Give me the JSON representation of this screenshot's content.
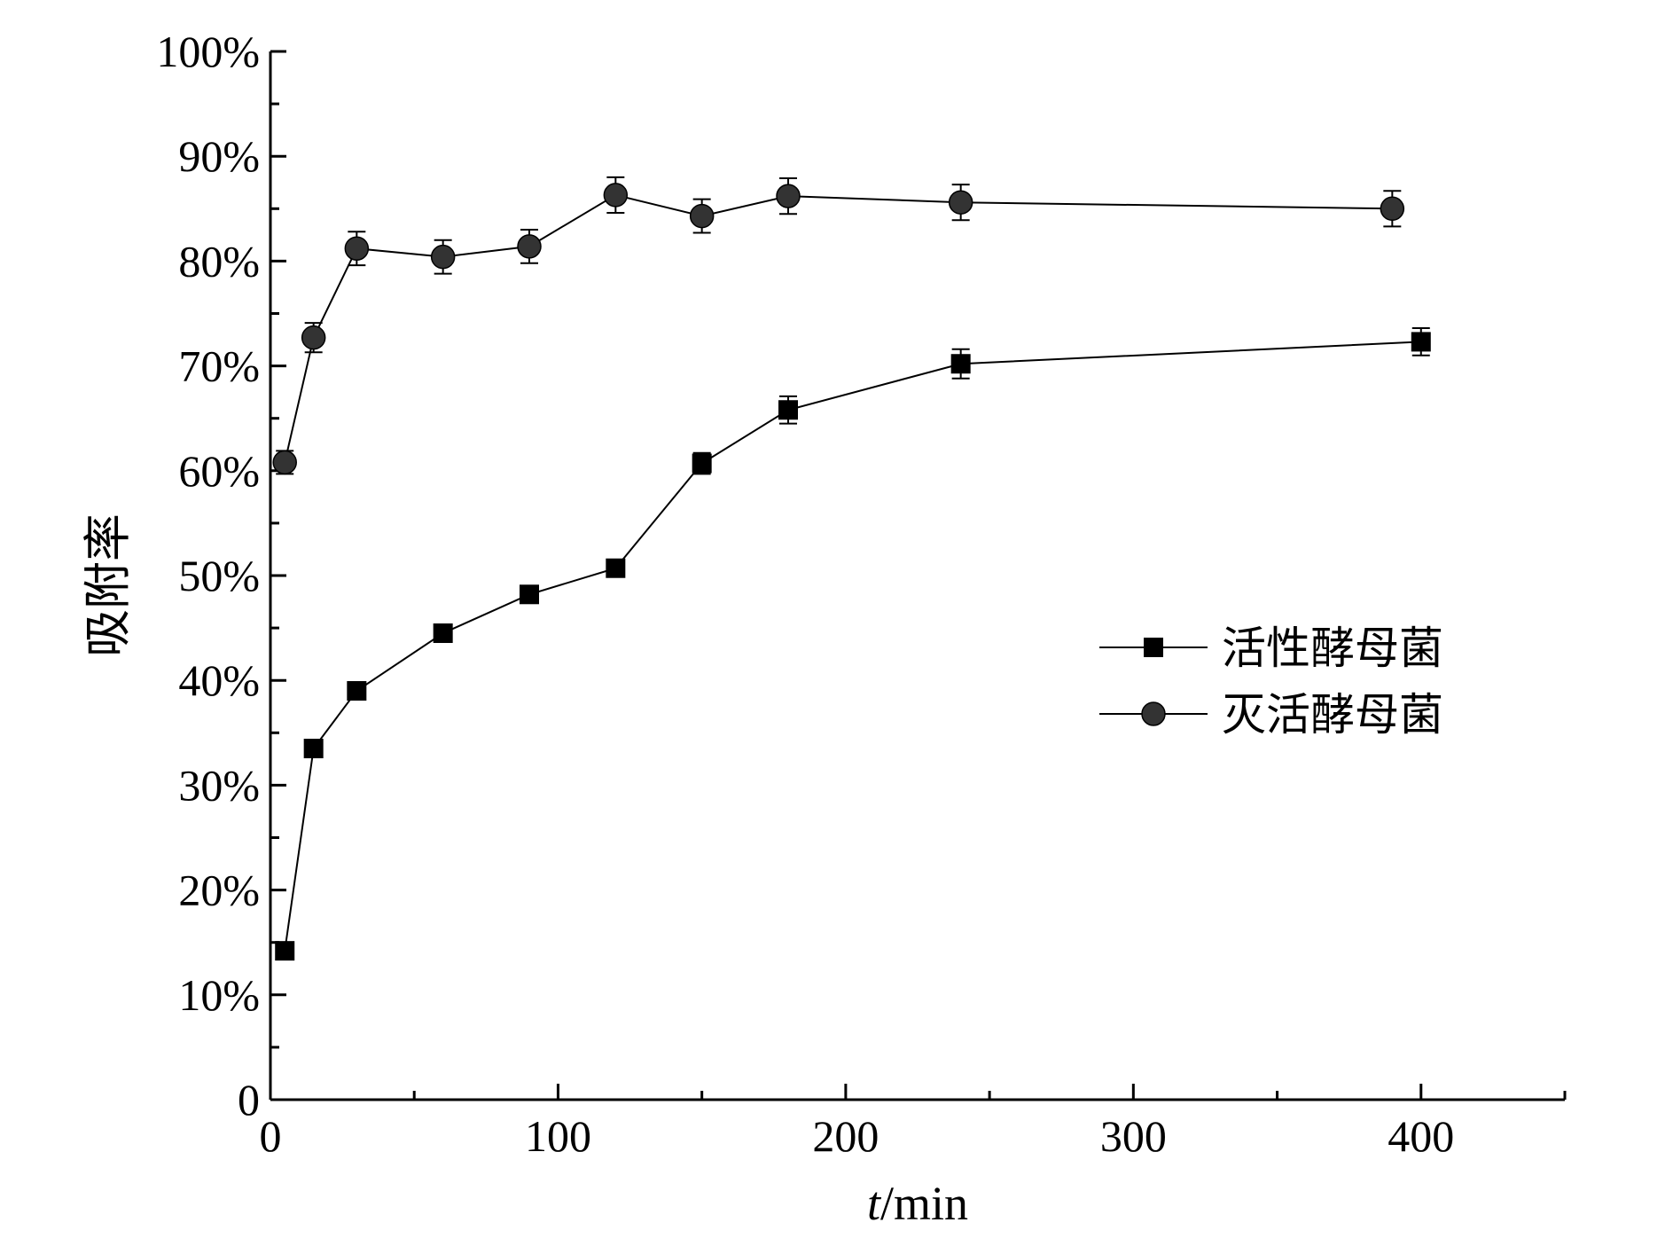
{
  "chart_data": {
    "type": "scatter",
    "xlabel_italic": "t",
    "xlabel_rest": "/min",
    "ylabel": "吸附率",
    "xlim": [
      0,
      450
    ],
    "ylim": [
      0,
      100
    ],
    "x_ticks": [
      "0",
      "100",
      "200",
      "300",
      "400"
    ],
    "y_ticks": [
      "0",
      "10%",
      "20%",
      "30%",
      "40%",
      "50%",
      "60%",
      "70%",
      "80%",
      "90%",
      "100%"
    ],
    "legend_position": "center-right",
    "series": [
      {
        "name": "活性酵母菌",
        "marker": "square",
        "color": "#000000",
        "x": [
          5,
          15,
          30,
          60,
          90,
          120,
          150,
          180,
          240,
          400
        ],
        "y": [
          14.2,
          33.5,
          39.0,
          44.5,
          48.2,
          50.7,
          60.7,
          65.8,
          70.2,
          72.3
        ],
        "err": [
          0.7,
          0.7,
          0.7,
          0.8,
          0.7,
          0.8,
          1.0,
          1.3,
          1.4,
          1.3
        ]
      },
      {
        "name": "灭活酵母菌",
        "marker": "circle",
        "color": "#333333",
        "x": [
          5,
          15,
          30,
          60,
          90,
          120,
          150,
          180,
          240,
          390
        ],
        "y": [
          60.8,
          72.7,
          81.2,
          80.4,
          81.4,
          86.3,
          84.3,
          86.2,
          85.6,
          85.0
        ],
        "err": [
          1.1,
          1.4,
          1.6,
          1.6,
          1.6,
          1.7,
          1.6,
          1.7,
          1.7,
          1.7
        ]
      }
    ]
  }
}
